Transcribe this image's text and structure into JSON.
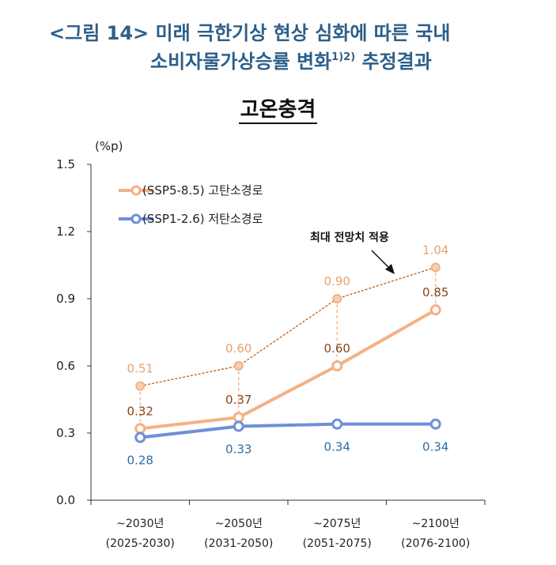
{
  "header": {
    "title_line1": "<그림 14> 미래 극한기상 현상 심화에 따른 국내",
    "title_line2": "소비자물가상승률 변화",
    "title_sup": "1)2)",
    "title_line2_end": " 추정결과",
    "subtitle": "고온충격"
  },
  "chart_data": {
    "type": "line",
    "unit_label": "(%p)",
    "ylim": [
      0,
      1.5
    ],
    "yticks": [
      "0.0",
      "0.3",
      "0.6",
      "0.9",
      "1.2",
      "1.5"
    ],
    "ytick_values": [
      0,
      0.3,
      0.6,
      0.9,
      1.2,
      1.5
    ],
    "categories": [
      {
        "top": "~2030년",
        "bottom": "(2025-2030)"
      },
      {
        "top": "~2050년",
        "bottom": "(2031-2050)"
      },
      {
        "top": "~2075년",
        "bottom": "(2051-2075)"
      },
      {
        "top": "~2100년",
        "bottom": "(2076-2100)"
      }
    ],
    "series": [
      {
        "name": "(SSP5-8.5) 고탄소경로",
        "color": "#f4b183",
        "label_color": "#8b4513",
        "values": [
          0.32,
          0.37,
          0.6,
          0.85
        ],
        "labels": [
          "0.32",
          "0.37",
          "0.60",
          "0.85"
        ]
      },
      {
        "name": "(SSP1-2.6) 저탄소경로",
        "color": "#6f8fd8",
        "label_color": "#2e6ea6",
        "values": [
          0.28,
          0.33,
          0.34,
          0.34
        ],
        "labels": [
          "0.28",
          "0.33",
          "0.34",
          "0.34"
        ]
      }
    ],
    "max_series": {
      "color": "#f4b183",
      "line_color": "#c55a11",
      "label_color": "#e8a070",
      "values": [
        0.51,
        0.6,
        0.9,
        1.04
      ],
      "labels": [
        "0.51",
        "0.60",
        "0.90",
        "1.04"
      ]
    },
    "annotation": "최대 전망치 적용",
    "grid": false,
    "legend_position": "top-left"
  }
}
